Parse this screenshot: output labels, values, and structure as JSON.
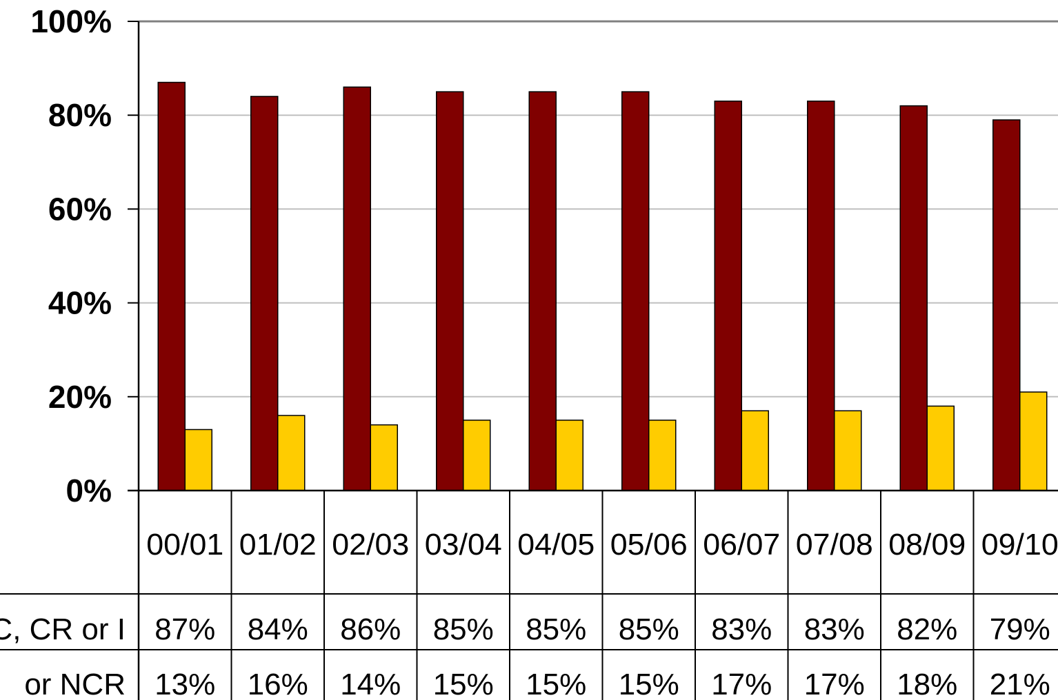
{
  "chart_data": {
    "type": "bar",
    "categories": [
      "00/01",
      "01/02",
      "02/03",
      "03/04",
      "04/05",
      "05/06",
      "06/07",
      "07/08",
      "08/09",
      "09/10"
    ],
    "series": [
      {
        "name": "C, CR or I",
        "color": "#800000",
        "values": [
          87,
          84,
          86,
          85,
          85,
          85,
          83,
          83,
          82,
          79
        ],
        "labels": [
          "87%",
          "84%",
          "86%",
          "85%",
          "85%",
          "85%",
          "83%",
          "83%",
          "82%",
          "79%"
        ]
      },
      {
        "name": "or NCR",
        "color": "#FFCC00",
        "values": [
          13,
          16,
          14,
          15,
          15,
          15,
          17,
          17,
          18,
          21
        ],
        "labels": [
          "13%",
          "16%",
          "14%",
          "15%",
          "15%",
          "15%",
          "17%",
          "17%",
          "18%",
          "21%"
        ]
      }
    ],
    "yticks": [
      "0%",
      "20%",
      "40%",
      "60%",
      "80%",
      "100%"
    ],
    "ylim": [
      0,
      100
    ],
    "grid": true,
    "legend": "data-table"
  }
}
